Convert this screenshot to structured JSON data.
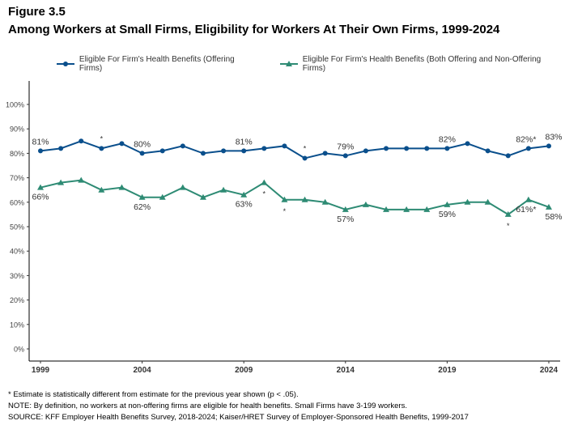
{
  "figure_label": "Figure 3.5",
  "chart_data": {
    "type": "line",
    "title": "Among Workers at Small Firms, Eligibility for Workers At Their Own Firms, 1999-2024",
    "x": [
      1999,
      2000,
      2001,
      2002,
      2003,
      2004,
      2005,
      2006,
      2007,
      2008,
      2009,
      2010,
      2011,
      2012,
      2013,
      2014,
      2015,
      2016,
      2017,
      2018,
      2019,
      2020,
      2021,
      2022,
      2023,
      2024
    ],
    "x_tick_labels": [
      "1999",
      "2004",
      "2009",
      "2014",
      "2019",
      "2024"
    ],
    "y_tick_labels": [
      "0%",
      "10%",
      "20%",
      "30%",
      "40%",
      "50%",
      "60%",
      "70%",
      "80%",
      "90%",
      "100%"
    ],
    "ylim": [
      0,
      100
    ],
    "grid": false,
    "legend_placement": "top",
    "series": [
      {
        "name": "Eligible For Firm's Health Benefits (Offering Firms)",
        "color": "#0a4f8c",
        "marker": "circle",
        "values": [
          81,
          82,
          85,
          82,
          84,
          80,
          81,
          83,
          80,
          81,
          81,
          82,
          83,
          78,
          80,
          79,
          81,
          82,
          82,
          82,
          82,
          84,
          81,
          79,
          82,
          83
        ],
        "data_labels": [
          {
            "year": 1999,
            "text": "81%"
          },
          {
            "year": 2004,
            "text": "80%"
          },
          {
            "year": 2009,
            "text": "81%"
          },
          {
            "year": 2014,
            "text": "79%"
          },
          {
            "year": 2019,
            "text": "82%"
          },
          {
            "year": 2023,
            "text": "82%*"
          },
          {
            "year": 2024,
            "text": "83%"
          }
        ],
        "significant": [
          2002,
          2012
        ]
      },
      {
        "name": "Eligible For Firm's Health Benefits (Both Offering and Non-Offering Firms)",
        "color": "#2e8b74",
        "marker": "triangle",
        "values": [
          66,
          68,
          69,
          65,
          66,
          62,
          62,
          66,
          62,
          65,
          63,
          68,
          61,
          61,
          60,
          57,
          59,
          57,
          57,
          57,
          59,
          60,
          60,
          55,
          61,
          58
        ],
        "data_labels": [
          {
            "year": 1999,
            "text": "66%"
          },
          {
            "year": 2004,
            "text": "62%"
          },
          {
            "year": 2009,
            "text": "63%"
          },
          {
            "year": 2014,
            "text": "57%"
          },
          {
            "year": 2019,
            "text": "59%"
          },
          {
            "year": 2023,
            "text": "61%*"
          },
          {
            "year": 2024,
            "text": "58%"
          }
        ],
        "significant": [
          2010,
          2011,
          2022
        ]
      }
    ]
  },
  "notes": [
    "* Estimate is statistically different from estimate for the previous year shown (p < .05).",
    "NOTE: By definition, no workers at non-offering firms are eligible for health benefits. Small Firms have 3-199 workers.",
    "SOURCE: KFF Employer Health Benefits Survey, 2018-2024; Kaiser/HRET Survey of Employer-Sponsored Health Benefits, 1999-2017"
  ]
}
